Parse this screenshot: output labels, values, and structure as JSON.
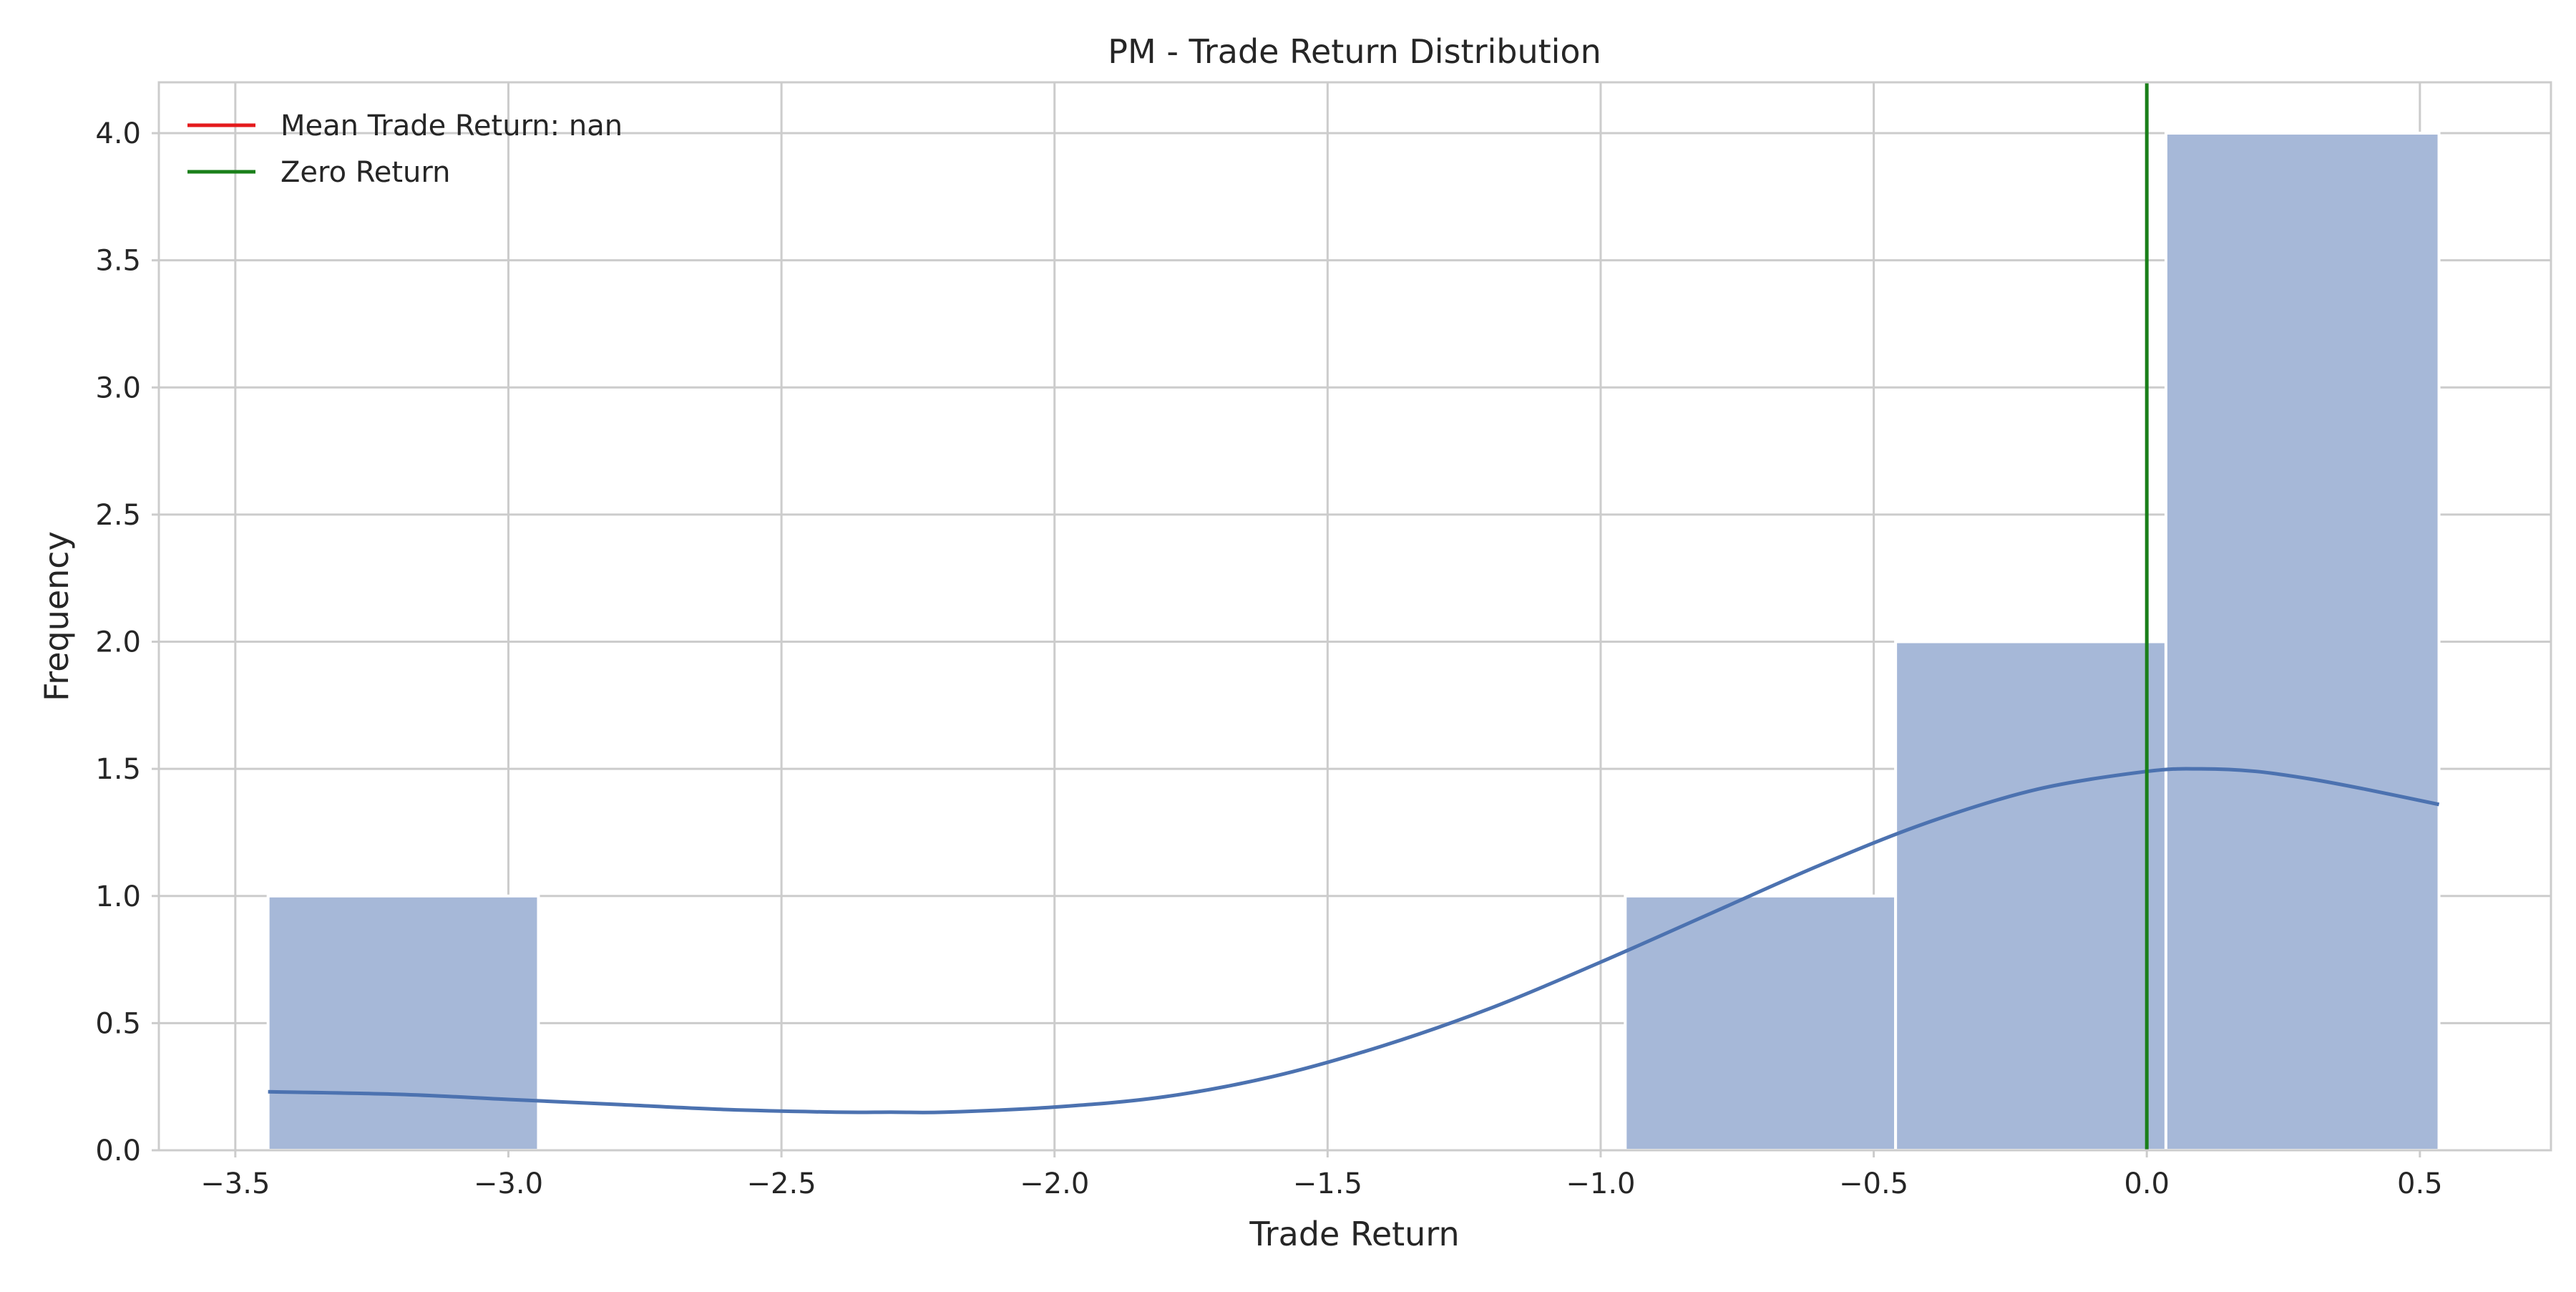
{
  "chart_data": {
    "type": "bar",
    "title": "PM - Trade Return Distribution",
    "xlabel": "Trade Return",
    "ylabel": "Frequency",
    "xlim": [
      -3.64,
      0.74
    ],
    "ylim": [
      0,
      4.2
    ],
    "xticks": [
      -3.5,
      -3.0,
      -2.5,
      -2.0,
      -1.5,
      -1.0,
      -0.5,
      0.0,
      0.5
    ],
    "xtick_labels": [
      "−3.5",
      "−3.0",
      "−2.5",
      "−2.0",
      "−1.5",
      "−1.0",
      "−0.5",
      "0.0",
      "0.5"
    ],
    "yticks": [
      0.0,
      0.5,
      1.0,
      1.5,
      2.0,
      2.5,
      3.0,
      3.5,
      4.0
    ],
    "ytick_labels": [
      "0.0",
      "0.5",
      "1.0",
      "1.5",
      "2.0",
      "2.5",
      "3.0",
      "3.5",
      "4.0"
    ],
    "grid": true,
    "legend_position": "upper-left",
    "bins": [
      {
        "x0": -3.44,
        "x1": -2.945,
        "count": 1
      },
      {
        "x0": -2.945,
        "x1": -2.45,
        "count": 0
      },
      {
        "x0": -2.45,
        "x1": -1.955,
        "count": 0
      },
      {
        "x0": -1.955,
        "x1": -1.46,
        "count": 0
      },
      {
        "x0": -1.46,
        "x1": -0.955,
        "count": 0
      },
      {
        "x0": -0.955,
        "x1": -0.46,
        "count": 1
      },
      {
        "x0": -0.46,
        "x1": 0.035,
        "count": 2
      },
      {
        "x0": 0.035,
        "x1": 0.535,
        "count": 4
      }
    ],
    "kde": {
      "x": [
        -3.44,
        -3.2,
        -3.0,
        -2.8,
        -2.6,
        -2.4,
        -2.3,
        -2.2,
        -2.0,
        -1.8,
        -1.6,
        -1.4,
        -1.2,
        -1.0,
        -0.8,
        -0.6,
        -0.4,
        -0.2,
        0.0,
        0.1,
        0.2,
        0.3,
        0.4,
        0.535
      ],
      "y": [
        0.23,
        0.22,
        0.2,
        0.18,
        0.16,
        0.15,
        0.15,
        0.15,
        0.17,
        0.21,
        0.29,
        0.41,
        0.56,
        0.74,
        0.93,
        1.12,
        1.29,
        1.42,
        1.49,
        1.5,
        1.49,
        1.46,
        1.42,
        1.36
      ]
    },
    "vlines": [
      {
        "name": "Mean Trade Return: nan",
        "x": null,
        "color": "#e41a1c"
      },
      {
        "name": "Zero Return",
        "x": 0.0,
        "color": "#1a7f1a"
      }
    ],
    "colors": {
      "bar_fill": "#a6b8d8",
      "bar_edge": "#ffffff",
      "kde_line": "#4c72b0",
      "grid": "#cccccc",
      "axes_edge": "#cccccc",
      "mean_line": "#e41a1c",
      "zero_line": "#1a7f1a"
    }
  }
}
